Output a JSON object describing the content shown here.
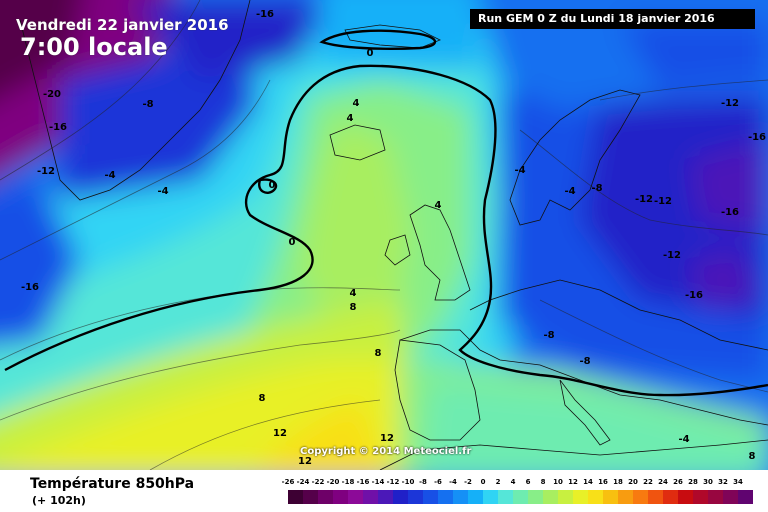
{
  "header": {
    "date": "Vendredi 22 janvier 2016",
    "time": "7:00 locale",
    "run": "Run GEM 0 Z du Lundi 18 janvier 2016"
  },
  "footer": {
    "variable": "Température 850hPa",
    "forecast_hour": "(+ 102h)",
    "copyright": "Copyright © 2014 Meteociel.fr"
  },
  "legend_scale": {
    "ticks": [
      "-26",
      "-24",
      "-22",
      "-20",
      "-18",
      "-16",
      "-14",
      "-12",
      "-10",
      "-8",
      "-6",
      "-4",
      "-2",
      "0",
      "2",
      "4",
      "6",
      "8",
      "10",
      "12",
      "14",
      "16",
      "18",
      "20",
      "22",
      "24",
      "26",
      "28",
      "30",
      "32",
      "34"
    ],
    "colors": [
      "#3d0033",
      "#55004a",
      "#6e0068",
      "#7f0080",
      "#8c0a98",
      "#7010a8",
      "#4b18b8",
      "#2020c8",
      "#1c36d8",
      "#1850e6",
      "#1570f0",
      "#1590f6",
      "#15b0f8",
      "#30d4f4",
      "#55e6d8",
      "#6eecb0",
      "#88ee88",
      "#a8ee60",
      "#c8f040",
      "#e8f028",
      "#f8e018",
      "#f8c010",
      "#f89c10",
      "#f87a10",
      "#f05410",
      "#e02c10",
      "#c80c10",
      "#b0082a",
      "#980640",
      "#800458",
      "#600470"
    ]
  },
  "isotherm_labels": [
    {
      "text": "-16"
    },
    {
      "text": "-20"
    },
    {
      "text": "-16"
    },
    {
      "text": "-12"
    },
    {
      "text": "-8"
    },
    {
      "text": "-4"
    },
    {
      "text": "-4"
    },
    {
      "text": "-16"
    },
    {
      "text": "0"
    },
    {
      "text": "4"
    },
    {
      "text": "4"
    },
    {
      "text": "0"
    },
    {
      "text": "0"
    },
    {
      "text": "4"
    },
    {
      "text": "8"
    },
    {
      "text": "8"
    },
    {
      "text": "8"
    },
    {
      "text": "12"
    },
    {
      "text": "12"
    },
    {
      "text": "12"
    },
    {
      "text": "4"
    },
    {
      "text": "-4"
    },
    {
      "text": "-4"
    },
    {
      "text": "-8"
    },
    {
      "text": "-12"
    },
    {
      "text": "-12"
    },
    {
      "text": "-12"
    },
    {
      "text": "-16"
    },
    {
      "text": "-12"
    },
    {
      "text": "-16"
    },
    {
      "text": "-16"
    },
    {
      "text": "-8"
    },
    {
      "text": "-8"
    },
    {
      "text": "-4"
    },
    {
      "text": "8"
    }
  ]
}
